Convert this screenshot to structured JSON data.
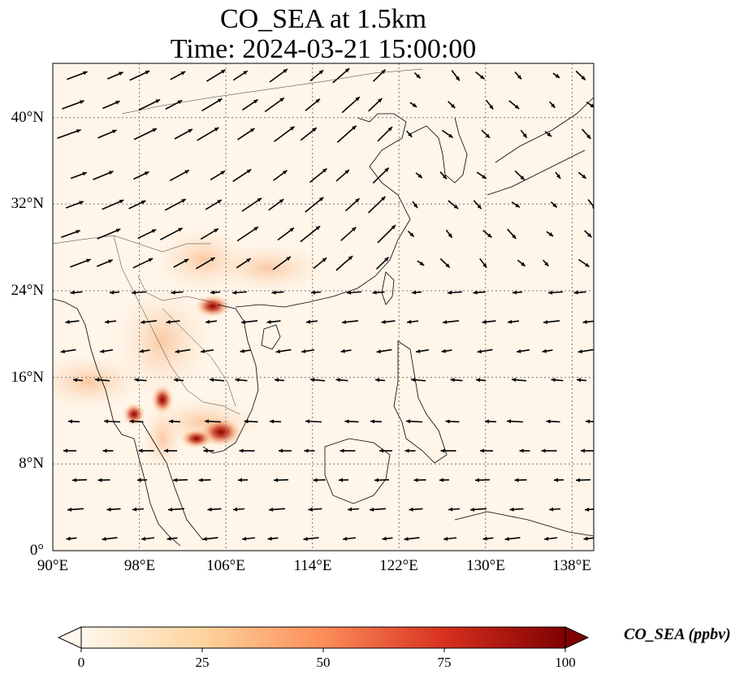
{
  "title": {
    "line1": "CO_SEA at 1.5km",
    "line2": "Time: 2024-03-21 15:00:00"
  },
  "map": {
    "lon_range": [
      90,
      140
    ],
    "lat_range": [
      0,
      45
    ],
    "lon_ticks": [
      "90°E",
      "98°E",
      "106°E",
      "114°E",
      "122°E",
      "130°E",
      "138°E"
    ],
    "lat_ticks": [
      "0°",
      "8°N",
      "16°N",
      "24°N",
      "32°N",
      "40°N"
    ],
    "gridlines": "dotted",
    "field": "CO_SEA",
    "hotspots": [
      {
        "lon": 105.5,
        "lat": 22.5,
        "value": 90
      },
      {
        "lon": 100.5,
        "lat": 14.0,
        "value": 90
      },
      {
        "lon": 106.0,
        "lat": 11.0,
        "value": 100
      },
      {
        "lon": 103.0,
        "lat": 10.5,
        "value": 75
      },
      {
        "lon": 97.5,
        "lat": 12.5,
        "value": 60
      }
    ]
  },
  "colorbar": {
    "label": "CO_SEA (ppbv)",
    "ticks": [
      "0",
      "25",
      "50",
      "75",
      "100"
    ],
    "range": [
      0,
      100
    ],
    "colormap": "OrRd",
    "colors": [
      "#fff7ec",
      "#fdd49e",
      "#fc8d59",
      "#d7301f",
      "#7f0000"
    ]
  }
}
